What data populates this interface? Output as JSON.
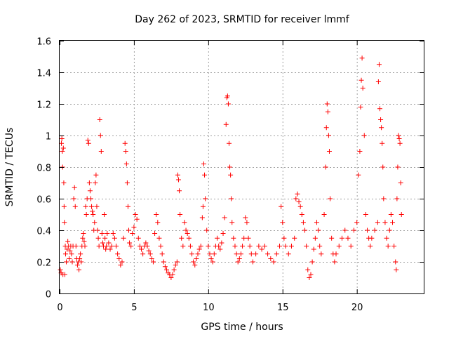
{
  "chart_data": {
    "type": "scatter",
    "title": "Day 262 of 2023, SRMTID for receiver lmmf",
    "xlabel": "GPS time / hours",
    "ylabel": "SRMTID / TECUs",
    "xlim": [
      0,
      24.5
    ],
    "ylim": [
      0,
      1.6
    ],
    "x_ticks": [
      "0",
      "5",
      "10",
      "15",
      "20"
    ],
    "x_tick_values": [
      0,
      5,
      10,
      15,
      20
    ],
    "y_ticks": [
      "0",
      "0.2",
      "0.4",
      "0.6",
      "0.8",
      "1",
      "1.2",
      "1.4",
      "1.6"
    ],
    "y_tick_values": [
      0,
      0.2,
      0.4,
      0.6,
      0.8,
      1.0,
      1.2,
      1.4,
      1.6
    ],
    "grid": true,
    "marker": "plus",
    "color": "#ff0000",
    "series": [
      {
        "name": "SRMTID",
        "points": [
          [
            0.05,
            0.15
          ],
          [
            0.1,
            0.13
          ],
          [
            0.12,
            0.95
          ],
          [
            0.15,
            0.98
          ],
          [
            0.18,
            0.9
          ],
          [
            0.2,
            0.8
          ],
          [
            0.22,
            0.12
          ],
          [
            0.25,
            0.92
          ],
          [
            0.28,
            0.7
          ],
          [
            0.3,
            0.55
          ],
          [
            0.32,
            0.45
          ],
          [
            0.35,
            0.12
          ],
          [
            0.38,
            0.3
          ],
          [
            0.4,
            0.25
          ],
          [
            0.45,
            0.2
          ],
          [
            0.5,
            0.28
          ],
          [
            0.55,
            0.33
          ],
          [
            0.6,
            0.3
          ],
          [
            0.65,
            0.22
          ],
          [
            0.7,
            0.27
          ],
          [
            0.75,
            0.3
          ],
          [
            0.8,
            0.25
          ],
          [
            0.85,
            0.2
          ],
          [
            0.9,
            0.3
          ],
          [
            0.95,
            0.6
          ],
          [
            1.0,
            0.67
          ],
          [
            1.05,
            0.55
          ],
          [
            1.1,
            0.3
          ],
          [
            1.15,
            0.22
          ],
          [
            1.2,
            0.18
          ],
          [
            1.25,
            0.2
          ],
          [
            1.3,
            0.15
          ],
          [
            1.35,
            0.22
          ],
          [
            1.4,
            0.25
          ],
          [
            1.45,
            0.2
          ],
          [
            1.5,
            0.3
          ],
          [
            1.55,
            0.35
          ],
          [
            1.6,
            0.38
          ],
          [
            1.65,
            0.33
          ],
          [
            1.7,
            0.3
          ],
          [
            1.75,
            0.55
          ],
          [
            1.8,
            0.5
          ],
          [
            1.85,
            0.6
          ],
          [
            1.9,
            0.97
          ],
          [
            1.95,
            0.95
          ],
          [
            2.0,
            0.7
          ],
          [
            2.05,
            0.65
          ],
          [
            2.1,
            0.6
          ],
          [
            2.15,
            0.55
          ],
          [
            2.2,
            0.52
          ],
          [
            2.25,
            0.5
          ],
          [
            2.3,
            0.4
          ],
          [
            2.35,
            0.45
          ],
          [
            2.4,
            0.7
          ],
          [
            2.45,
            0.75
          ],
          [
            2.5,
            0.55
          ],
          [
            2.55,
            0.4
          ],
          [
            2.6,
            0.35
          ],
          [
            2.65,
            0.3
          ],
          [
            2.7,
            1.1
          ],
          [
            2.75,
            1.0
          ],
          [
            2.8,
            0.9
          ],
          [
            2.85,
            0.38
          ],
          [
            2.9,
            0.32
          ],
          [
            2.95,
            0.3
          ],
          [
            3.0,
            0.5
          ],
          [
            3.05,
            0.35
          ],
          [
            3.1,
            0.28
          ],
          [
            3.15,
            0.3
          ],
          [
            3.2,
            0.38
          ],
          [
            3.3,
            0.32
          ],
          [
            3.4,
            0.28
          ],
          [
            3.5,
            0.3
          ],
          [
            3.6,
            0.38
          ],
          [
            3.7,
            0.35
          ],
          [
            3.8,
            0.3
          ],
          [
            3.9,
            0.25
          ],
          [
            4.0,
            0.22
          ],
          [
            4.1,
            0.18
          ],
          [
            4.2,
            0.2
          ],
          [
            4.3,
            0.35
          ],
          [
            4.4,
            0.95
          ],
          [
            4.45,
            0.9
          ],
          [
            4.5,
            0.82
          ],
          [
            4.55,
            0.7
          ],
          [
            4.6,
            0.55
          ],
          [
            4.65,
            0.4
          ],
          [
            4.7,
            0.32
          ],
          [
            4.8,
            0.3
          ],
          [
            4.9,
            0.38
          ],
          [
            5.0,
            0.42
          ],
          [
            5.1,
            0.5
          ],
          [
            5.2,
            0.47
          ],
          [
            5.3,
            0.35
          ],
          [
            5.4,
            0.3
          ],
          [
            5.5,
            0.28
          ],
          [
            5.6,
            0.25
          ],
          [
            5.7,
            0.3
          ],
          [
            5.8,
            0.32
          ],
          [
            5.9,
            0.3
          ],
          [
            6.0,
            0.27
          ],
          [
            6.1,
            0.25
          ],
          [
            6.2,
            0.22
          ],
          [
            6.3,
            0.2
          ],
          [
            6.4,
            0.38
          ],
          [
            6.5,
            0.5
          ],
          [
            6.6,
            0.45
          ],
          [
            6.7,
            0.35
          ],
          [
            6.8,
            0.3
          ],
          [
            6.9,
            0.25
          ],
          [
            7.0,
            0.2
          ],
          [
            7.1,
            0.17
          ],
          [
            7.2,
            0.15
          ],
          [
            7.3,
            0.13
          ],
          [
            7.4,
            0.12
          ],
          [
            7.5,
            0.1
          ],
          [
            7.6,
            0.12
          ],
          [
            7.7,
            0.15
          ],
          [
            7.8,
            0.18
          ],
          [
            7.9,
            0.2
          ],
          [
            7.95,
            0.75
          ],
          [
            8.0,
            0.72
          ],
          [
            8.05,
            0.65
          ],
          [
            8.1,
            0.5
          ],
          [
            8.2,
            0.35
          ],
          [
            8.3,
            0.3
          ],
          [
            8.4,
            0.45
          ],
          [
            8.5,
            0.4
          ],
          [
            8.6,
            0.38
          ],
          [
            8.7,
            0.35
          ],
          [
            8.8,
            0.3
          ],
          [
            8.9,
            0.25
          ],
          [
            9.0,
            0.2
          ],
          [
            9.1,
            0.18
          ],
          [
            9.2,
            0.22
          ],
          [
            9.3,
            0.25
          ],
          [
            9.4,
            0.28
          ],
          [
            9.5,
            0.3
          ],
          [
            9.6,
            0.48
          ],
          [
            9.65,
            0.55
          ],
          [
            9.7,
            0.82
          ],
          [
            9.75,
            0.75
          ],
          [
            9.8,
            0.6
          ],
          [
            9.9,
            0.4
          ],
          [
            10.0,
            0.3
          ],
          [
            10.1,
            0.25
          ],
          [
            10.2,
            0.22
          ],
          [
            10.3,
            0.2
          ],
          [
            10.4,
            0.25
          ],
          [
            10.5,
            0.3
          ],
          [
            10.6,
            0.35
          ],
          [
            10.7,
            0.3
          ],
          [
            10.8,
            0.28
          ],
          [
            10.9,
            0.32
          ],
          [
            11.0,
            0.38
          ],
          [
            11.1,
            0.48
          ],
          [
            11.2,
            1.07
          ],
          [
            11.25,
            1.24
          ],
          [
            11.3,
            1.25
          ],
          [
            11.35,
            1.2
          ],
          [
            11.4,
            0.95
          ],
          [
            11.45,
            0.8
          ],
          [
            11.5,
            0.75
          ],
          [
            11.55,
            0.6
          ],
          [
            11.6,
            0.45
          ],
          [
            11.7,
            0.35
          ],
          [
            11.8,
            0.3
          ],
          [
            11.9,
            0.25
          ],
          [
            12.0,
            0.2
          ],
          [
            12.1,
            0.22
          ],
          [
            12.2,
            0.25
          ],
          [
            12.3,
            0.3
          ],
          [
            12.4,
            0.35
          ],
          [
            12.5,
            0.48
          ],
          [
            12.6,
            0.45
          ],
          [
            12.7,
            0.35
          ],
          [
            12.8,
            0.3
          ],
          [
            12.9,
            0.25
          ],
          [
            13.0,
            0.2
          ],
          [
            13.2,
            0.25
          ],
          [
            13.4,
            0.3
          ],
          [
            13.6,
            0.28
          ],
          [
            13.8,
            0.3
          ],
          [
            14.0,
            0.25
          ],
          [
            14.2,
            0.22
          ],
          [
            14.4,
            0.2
          ],
          [
            14.6,
            0.25
          ],
          [
            14.8,
            0.3
          ],
          [
            14.9,
            0.55
          ],
          [
            15.0,
            0.45
          ],
          [
            15.1,
            0.35
          ],
          [
            15.2,
            0.3
          ],
          [
            15.4,
            0.25
          ],
          [
            15.6,
            0.3
          ],
          [
            15.8,
            0.35
          ],
          [
            15.9,
            0.6
          ],
          [
            16.0,
            0.63
          ],
          [
            16.1,
            0.58
          ],
          [
            16.2,
            0.55
          ],
          [
            16.3,
            0.5
          ],
          [
            16.4,
            0.45
          ],
          [
            16.5,
            0.4
          ],
          [
            16.6,
            0.3
          ],
          [
            16.7,
            0.15
          ],
          [
            16.8,
            0.1
          ],
          [
            16.9,
            0.12
          ],
          [
            17.0,
            0.2
          ],
          [
            17.1,
            0.28
          ],
          [
            17.2,
            0.35
          ],
          [
            17.3,
            0.45
          ],
          [
            17.4,
            0.4
          ],
          [
            17.5,
            0.3
          ],
          [
            17.6,
            0.25
          ],
          [
            17.8,
            0.5
          ],
          [
            17.9,
            0.8
          ],
          [
            17.95,
            1.05
          ],
          [
            18.0,
            1.2
          ],
          [
            18.05,
            1.15
          ],
          [
            18.1,
            1.0
          ],
          [
            18.15,
            0.9
          ],
          [
            18.2,
            0.6
          ],
          [
            18.3,
            0.35
          ],
          [
            18.4,
            0.25
          ],
          [
            18.5,
            0.2
          ],
          [
            18.6,
            0.25
          ],
          [
            18.8,
            0.3
          ],
          [
            19.0,
            0.35
          ],
          [
            19.2,
            0.4
          ],
          [
            19.4,
            0.35
          ],
          [
            19.6,
            0.3
          ],
          [
            19.8,
            0.4
          ],
          [
            20.0,
            0.45
          ],
          [
            20.1,
            0.75
          ],
          [
            20.2,
            0.9
          ],
          [
            20.25,
            1.18
          ],
          [
            20.3,
            1.35
          ],
          [
            20.35,
            1.49
          ],
          [
            20.4,
            1.3
          ],
          [
            20.5,
            1.0
          ],
          [
            20.6,
            0.5
          ],
          [
            20.7,
            0.4
          ],
          [
            20.8,
            0.35
          ],
          [
            20.9,
            0.3
          ],
          [
            21.0,
            0.35
          ],
          [
            21.2,
            0.4
          ],
          [
            21.4,
            0.45
          ],
          [
            21.45,
            1.34
          ],
          [
            21.5,
            1.45
          ],
          [
            21.55,
            1.17
          ],
          [
            21.6,
            1.1
          ],
          [
            21.65,
            1.05
          ],
          [
            21.7,
            0.95
          ],
          [
            21.75,
            0.8
          ],
          [
            21.8,
            0.6
          ],
          [
            21.9,
            0.45
          ],
          [
            22.0,
            0.35
          ],
          [
            22.1,
            0.3
          ],
          [
            22.2,
            0.4
          ],
          [
            22.3,
            0.5
          ],
          [
            22.4,
            0.45
          ],
          [
            22.5,
            0.3
          ],
          [
            22.6,
            0.2
          ],
          [
            22.65,
            0.15
          ],
          [
            22.7,
            0.6
          ],
          [
            22.75,
            0.8
          ],
          [
            22.8,
            1.0
          ],
          [
            22.85,
            0.98
          ],
          [
            22.9,
            0.95
          ],
          [
            22.95,
            0.7
          ],
          [
            23.0,
            0.5
          ]
        ]
      }
    ]
  }
}
